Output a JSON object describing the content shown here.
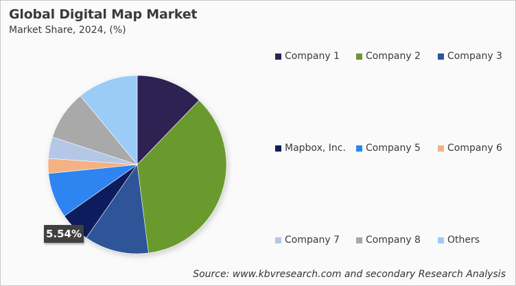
{
  "header": {
    "title": "Global Digital Map Market",
    "subtitle": "Market Share, 2024, (%)"
  },
  "highlight_label": "5.54%",
  "source": "Source: www.kbvresearch.com and secondary Research Analysis",
  "legend": [
    {
      "label": "Company 1",
      "color": "#2e2352"
    },
    {
      "label": "Company 2",
      "color": "#6a9a2f"
    },
    {
      "label": "Company 3",
      "color": "#2f5597"
    },
    {
      "label": "Mapbox, Inc.",
      "color": "#0a1f5c"
    },
    {
      "label": "Company 5",
      "color": "#2f84f0"
    },
    {
      "label": "Company 6",
      "color": "#f4b183"
    },
    {
      "label": "Company 7",
      "color": "#b4c7e7"
    },
    {
      "label": "Company 8",
      "color": "#a9a9a9"
    },
    {
      "label": "Others",
      "color": "#9dcbf7"
    }
  ],
  "chart_data": {
    "type": "pie",
    "title": "Global Digital Map Market",
    "subtitle": "Market Share, 2024, (%)",
    "categories": [
      "Company 1",
      "Company 2",
      "Company 3",
      "Mapbox, Inc.",
      "Company 5",
      "Company 6",
      "Company 7",
      "Company 8",
      "Others"
    ],
    "values": [
      12.2,
      35.8,
      11.7,
      5.54,
      8.2,
      2.7,
      3.9,
      9.0,
      11.0
    ],
    "colors": [
      "#2e2352",
      "#6a9a2f",
      "#2f5597",
      "#0a1f5c",
      "#2f84f0",
      "#f4b183",
      "#b4c7e7",
      "#a9a9a9",
      "#9dcbf7"
    ],
    "data_labels": [
      {
        "category": "Mapbox, Inc.",
        "text": "5.54%"
      }
    ],
    "start_angle": "12 o'clock, clockwise",
    "legend_position": "right",
    "source": "Source: www.kbvresearch.com and secondary Research Analysis"
  }
}
